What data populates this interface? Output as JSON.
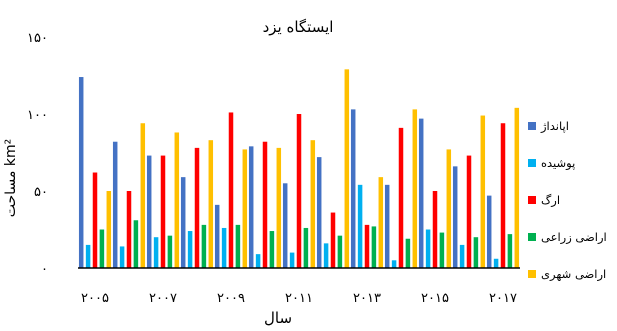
{
  "chart_data": {
    "type": "bar",
    "title": "ایستگاه یزد",
    "xlabel": "سال",
    "ylabel": "مساحت km²",
    "ylim": [
      0,
      150
    ],
    "yticks": [
      0,
      50,
      100,
      150
    ],
    "ytick_labels": [
      "۰",
      "۵۰",
      "۱۰۰",
      "۱۵۰"
    ],
    "xtick_labels": [
      "۲۰۰۵",
      "۲۰۰۷",
      "۲۰۰۹",
      "۲۰۱۱",
      "۲۰۱۳",
      "۲۰۱۵",
      "۲۰۱۷"
    ],
    "xtick_positions": [
      0,
      2,
      4,
      6,
      8,
      10,
      12
    ],
    "categories": [
      "2005",
      "2006",
      "2007",
      "2008",
      "2009",
      "2010",
      "2011",
      "2012",
      "2013",
      "2014",
      "2015",
      "2016",
      "2017"
    ],
    "series": [
      {
        "name": "اپانداژ",
        "color": "#4472C4",
        "values": [
          124,
          82,
          73,
          59,
          41,
          79,
          55,
          72,
          103,
          54,
          97,
          66,
          47
        ]
      },
      {
        "name": "پوشیده",
        "color": "#00B0F0",
        "values": [
          15,
          14,
          20,
          24,
          26,
          9,
          10,
          16,
          54,
          5,
          25,
          15,
          6
        ]
      },
      {
        "name": "ارگ",
        "color": "#FF0000",
        "values": [
          62,
          50,
          73,
          78,
          101,
          82,
          100,
          36,
          28,
          91,
          50,
          73,
          94
        ]
      },
      {
        "name": "اراضی زراعی",
        "color": "#00B050",
        "values": [
          25,
          31,
          21,
          28,
          28,
          24,
          26,
          21,
          27,
          19,
          23,
          20,
          22
        ]
      },
      {
        "name": "اراضی شهری",
        "color": "#FFC000",
        "values": [
          50,
          94,
          88,
          83,
          77,
          78,
          83,
          129,
          59,
          103,
          77,
          99,
          104
        ]
      }
    ],
    "legend_position": "right",
    "grid": false
  }
}
